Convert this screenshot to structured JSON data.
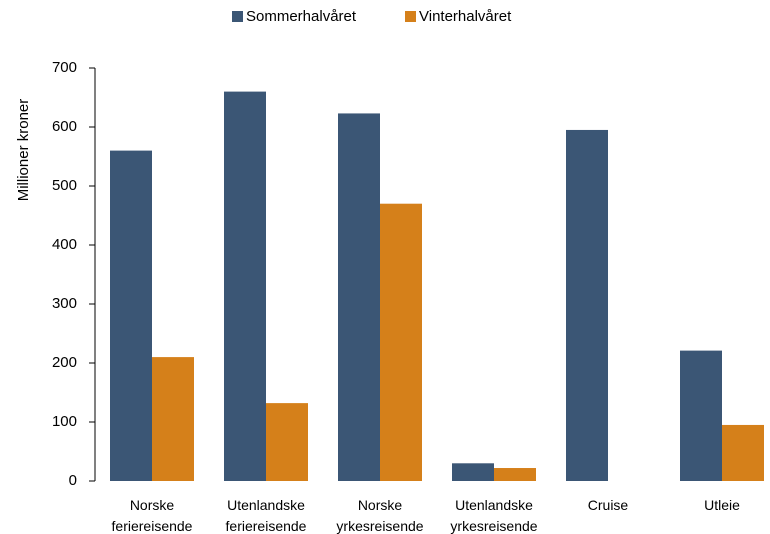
{
  "chart_data": {
    "type": "bar",
    "title": null,
    "y_label": "Millioner kroner",
    "categories": [
      "Norske feriereisende",
      "Utenlandske feriereisende",
      "Norske yrkesreisende",
      "Utenlandske yrkesreisende",
      "Cruise",
      "Utleie"
    ],
    "series": [
      {
        "name": "Sommerhalvåret",
        "color": "#3b5675",
        "values": [
          560,
          660,
          623,
          30,
          595,
          221
        ]
      },
      {
        "name": "Vinterhalvåret",
        "color": "#d5801a",
        "values": [
          210,
          132,
          470,
          22,
          0,
          95
        ]
      }
    ],
    "ylim": [
      0,
      700
    ],
    "yticks": [
      0,
      100,
      200,
      300,
      400,
      500,
      600,
      700
    ],
    "legend": "top",
    "grid": false
  }
}
